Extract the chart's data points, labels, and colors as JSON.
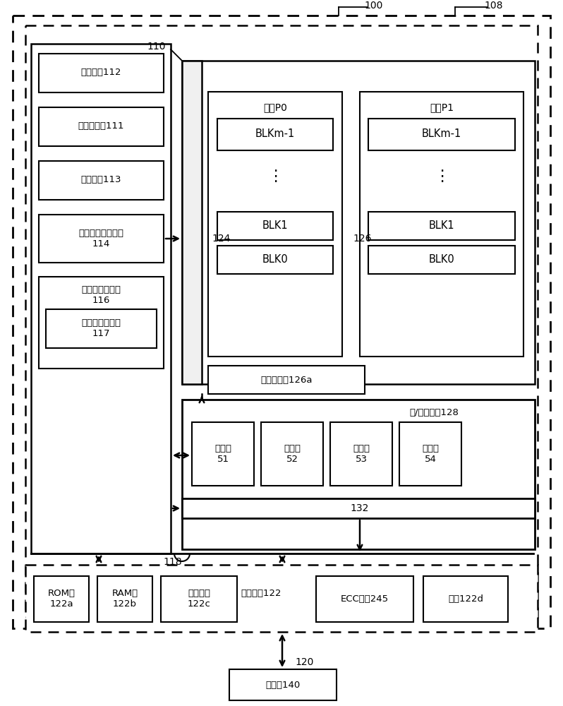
{
  "bg_color": "#ffffff",
  "fig_width": 7.98,
  "fig_height": 10.0,
  "labels": {
    "100": "100",
    "108": "108",
    "110": "110",
    "124": "124",
    "126": "126",
    "118": "118",
    "120": "120",
    "132": "132",
    "128": "读/写电路，128",
    "126a": "存储设备，126a",
    "140": "主机，140",
    "state_machine": "状态机，112",
    "col_redundancy": "列冗余电路111",
    "storage": "存储区，113",
    "addr_decoder": "片上地址解码器，\n114",
    "power_ctrl": "功率控制模块，\n116",
    "voltage_timer": "电压定时电路，\n117",
    "plane_p0": "平面P0",
    "plane_p1": "平面P1",
    "blkm1_p0": "BLKm-1",
    "blk1_p0": "BLK1",
    "blk0_p0": "BLK0",
    "blkm1_p1": "BLKm-1",
    "blk1_p1": "BLK1",
    "blk0_p1": "BLK0",
    "sense51": "感测块\n51",
    "sense52": "感测块\n52",
    "sense53": "感测块\n53",
    "sense54": "感测块\n54",
    "rom": "ROM，\n122a",
    "ram": "RAM，\n122b",
    "processor": "处理器，\n122c",
    "controller": "控制器，122",
    "ecc": "ECC引擎245",
    "interface": "接口122d"
  }
}
